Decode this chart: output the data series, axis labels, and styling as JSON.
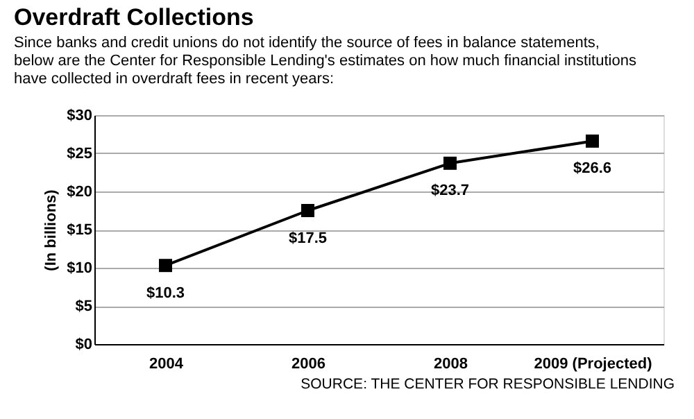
{
  "chart_data": {
    "type": "line",
    "title": "Overdraft Collections",
    "subtitle": "Since banks and credit unions do not identify the source of fees in balance statements, below are the Center for Responsible Lending's estimates on how much financial institutions have collected in overdraft fees in recent years:",
    "categories": [
      "2004",
      "2006",
      "2008",
      "2009 (Projected)"
    ],
    "series": [
      {
        "color": "#000000",
        "values": [
          10.3,
          17.5,
          23.7,
          26.6
        ],
        "value_labels": [
          "$10.3",
          "$17.5",
          "$23.7",
          "$26.6"
        ]
      }
    ],
    "ylabel": "(In billions)",
    "ylim": [
      0,
      30
    ],
    "yticks": [
      {
        "value": 0,
        "label": "$0"
      },
      {
        "value": 5,
        "label": "$5"
      },
      {
        "value": 10,
        "label": "$10"
      },
      {
        "value": 15,
        "label": "$15"
      },
      {
        "value": 20,
        "label": "$20"
      },
      {
        "value": 25,
        "label": "$25"
      },
      {
        "value": 30,
        "label": "$30"
      }
    ],
    "grid": "y",
    "marker": "square",
    "line_style": "solid",
    "annotations": [
      "SOURCE: THE CENTER FOR RESPONSIBLE LENDING"
    ]
  }
}
